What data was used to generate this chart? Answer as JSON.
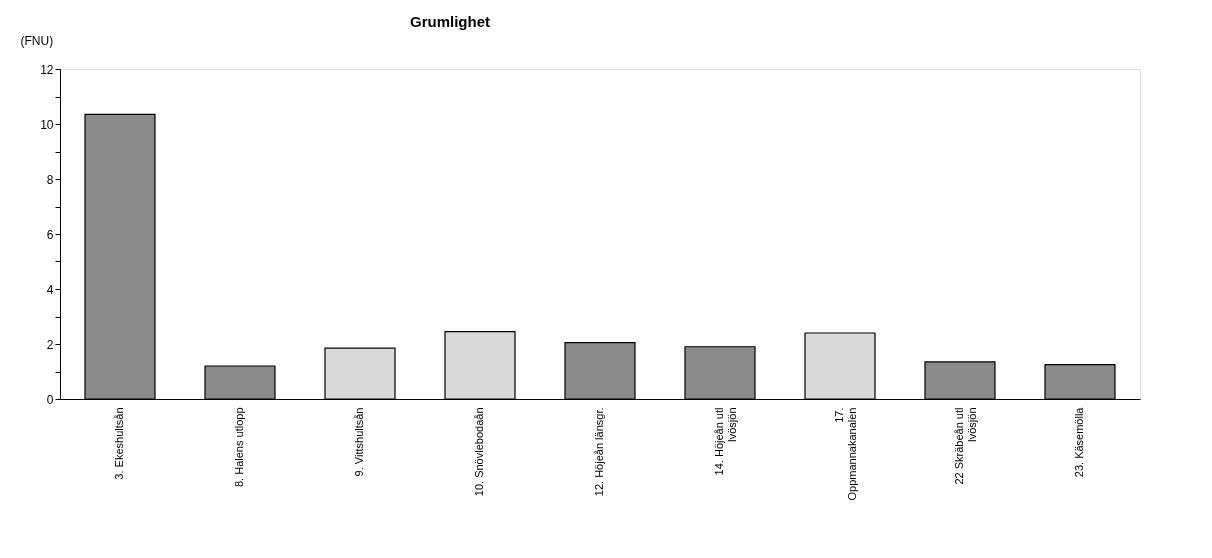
{
  "chart_data": {
    "type": "bar",
    "title": "Grumlighet",
    "ylabel": "(FNU)",
    "categories": [
      "3. Ekeshultsån",
      "8. Halens utlopp",
      "9. Vittshultsån",
      "10. Snövlebodaån",
      "12. Höjeån länsgr.",
      "14. Höjeån utl\nIvösjön",
      "17.\nOppmannakanalen",
      "22 Skräbeån utl\nIvösjön",
      "23. Käsemölla"
    ],
    "values": [
      10.35,
      1.2,
      1.85,
      2.45,
      2.05,
      1.9,
      2.4,
      1.35,
      1.25
    ],
    "colors": [
      "#8a8a8a",
      "#8a8a8a",
      "#dadada",
      "#dadada",
      "#8a8a8a",
      "#8a8a8a",
      "#dadada",
      "#8a8a8a",
      "#8a8a8a"
    ],
    "ylim": [
      0,
      12
    ],
    "yticks": [
      0,
      {
        "value": 1,
        "label": null
      },
      2,
      {
        "value": 3,
        "label": null
      },
      4,
      {
        "value": 5,
        "label": null
      },
      6,
      {
        "value": 7,
        "label": null
      },
      8,
      {
        "value": 9,
        "label": null
      },
      10,
      {
        "value": 11,
        "label": null
      },
      12
    ],
    "grid": false
  }
}
